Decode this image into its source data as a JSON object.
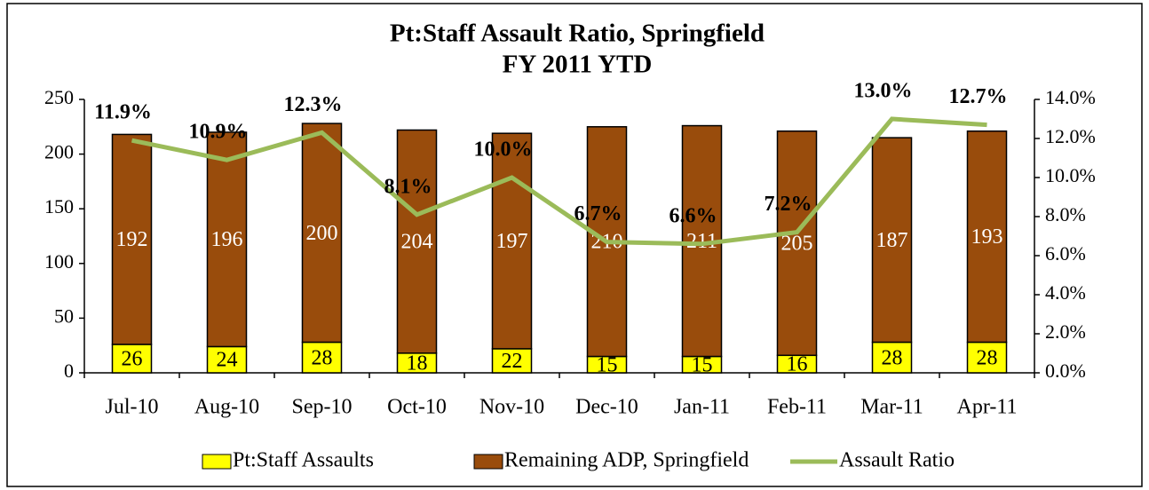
{
  "chart_data": {
    "type": "bar",
    "title": "Pt:Staff Assault Ratio, Springfield",
    "subtitle": "FY 2011 YTD",
    "stacked": true,
    "categories": [
      "Jul-10",
      "Aug-10",
      "Sep-10",
      "Oct-10",
      "Nov-10",
      "Dec-10",
      "Jan-11",
      "Feb-11",
      "Mar-11",
      "Apr-11"
    ],
    "series": [
      {
        "name": "Pt:Staff Assaults",
        "type": "bar",
        "color": "#ffff00",
        "values": [
          26,
          24,
          28,
          18,
          22,
          15,
          15,
          16,
          28,
          28
        ]
      },
      {
        "name": "Remaining ADP, Springfield",
        "type": "bar",
        "color": "#994c0c",
        "values": [
          192,
          196,
          200,
          204,
          197,
          210,
          211,
          205,
          187,
          193
        ]
      },
      {
        "name": "Assault Ratio",
        "type": "line",
        "axis": "y2",
        "color": "#9bbb59",
        "values": [
          11.9,
          10.9,
          12.3,
          8.1,
          10.0,
          6.7,
          6.6,
          7.2,
          13.0,
          12.7
        ],
        "value_labels": [
          "11.9%",
          "10.9%",
          "12.3%",
          "8.1%",
          "10.0%",
          "6.7%",
          "6.6%",
          "7.2%",
          "13.0%",
          "12.7%"
        ]
      }
    ],
    "ylim": [
      0,
      250
    ],
    "yticks": [
      0,
      50,
      100,
      150,
      200,
      250
    ],
    "y2lim": [
      0,
      14
    ],
    "y2ticks": [
      {
        "value": 0,
        "label": "0.0%"
      },
      {
        "value": 2,
        "label": "2.0%"
      },
      {
        "value": 4,
        "label": "4.0%"
      },
      {
        "value": 6,
        "label": "6.0%"
      },
      {
        "value": 8,
        "label": "8.0%"
      },
      {
        "value": 10,
        "label": "10.0%"
      },
      {
        "value": 12,
        "label": "12.0%"
      },
      {
        "value": 14,
        "label": "14.0%"
      }
    ],
    "grid": false,
    "legend": "bottom"
  }
}
